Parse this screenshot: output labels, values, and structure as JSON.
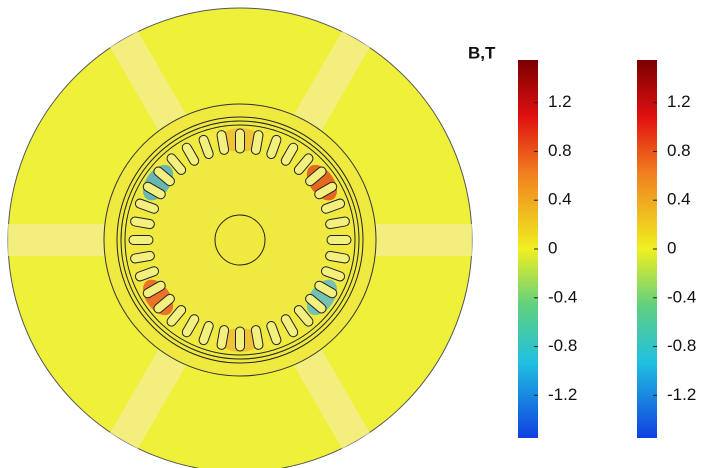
{
  "chart_data": [
    {
      "type": "colorbar",
      "title": "B,T",
      "zlim": [
        -1.55,
        1.55
      ],
      "zticks": [
        1.2,
        0.8,
        0.4,
        0,
        -0.4,
        -0.8,
        -1.2
      ]
    },
    {
      "type": "colorbar",
      "zlim": [
        -1.55,
        1.55
      ],
      "zticks": [
        1.2,
        0.8,
        0.4,
        0,
        -0.4,
        -0.8,
        -1.2
      ]
    }
  ]
}
